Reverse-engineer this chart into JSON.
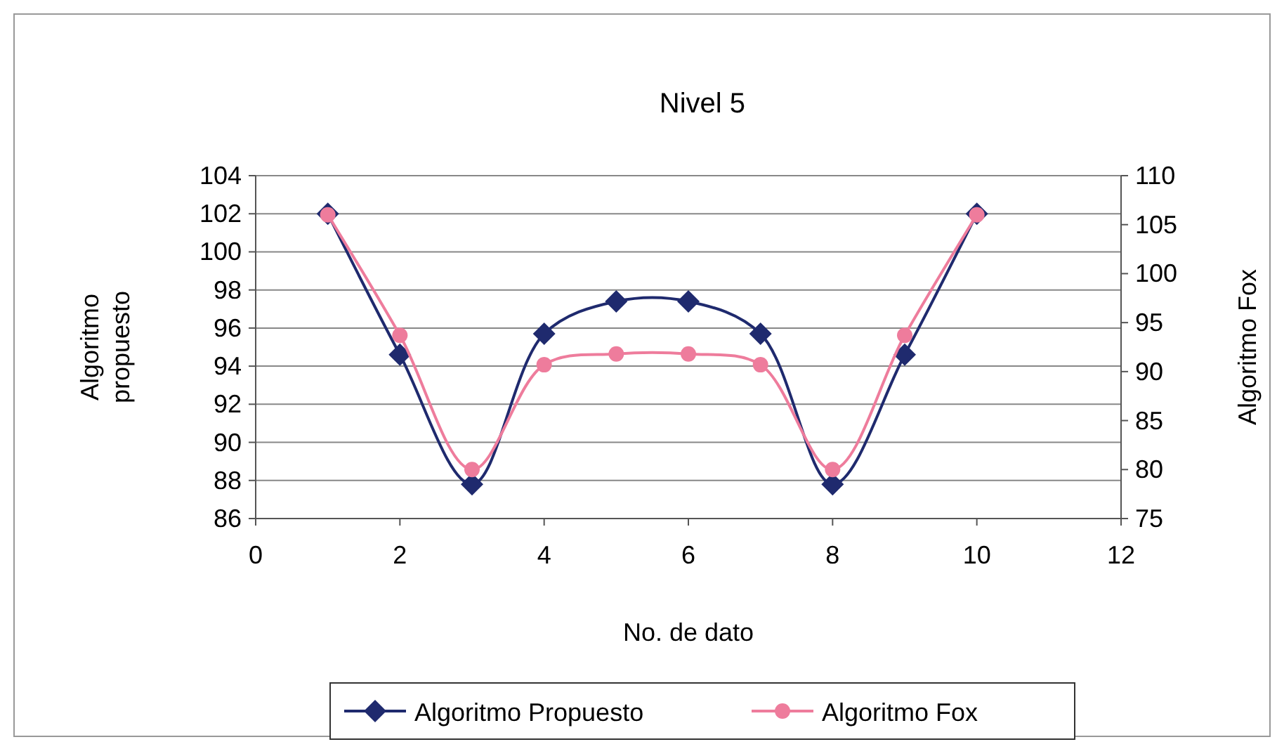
{
  "chart_data": {
    "type": "line",
    "title": "Nivel 5",
    "xlabel": "No. de dato",
    "ylabel": "Algoritmo propuesto",
    "y2label": "Algoritmo Fox",
    "x": [
      1,
      2,
      3,
      4,
      5,
      6,
      7,
      8,
      9,
      10
    ],
    "xlim": [
      0,
      12
    ],
    "xticks": [
      0,
      2,
      4,
      6,
      8,
      10,
      12
    ],
    "ylim": [
      86,
      104
    ],
    "yticks": [
      86,
      88,
      90,
      92,
      94,
      96,
      98,
      100,
      102,
      104
    ],
    "y2lim": [
      75,
      110
    ],
    "y2ticks": [
      75,
      80,
      85,
      90,
      95,
      100,
      105,
      110
    ],
    "grid": "y",
    "legend": "bottom",
    "series": [
      {
        "name": "Algoritmo Propuesto",
        "color": "#1f2a6e",
        "marker": "diamond",
        "values": [
          102,
          94.6,
          87.8,
          95.7,
          97.4,
          97.4,
          95.7,
          87.8,
          94.6,
          102
        ]
      },
      {
        "name": "Algoritmo Fox",
        "color": "#ee7c9c",
        "marker": "circle",
        "axis": "y2",
        "values": [
          106,
          93.7,
          80,
          90.7,
          91.8,
          91.8,
          90.7,
          80,
          93.7,
          106
        ]
      }
    ]
  }
}
